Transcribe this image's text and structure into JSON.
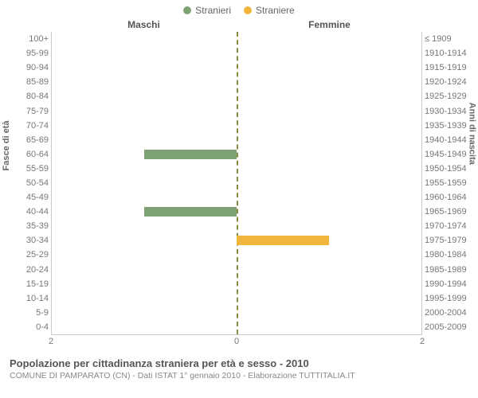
{
  "legend": {
    "items": [
      {
        "label": "Stranieri",
        "color": "#7fa274"
      },
      {
        "label": "Straniere",
        "color": "#f2b63c"
      }
    ]
  },
  "headers": {
    "left": "Maschi",
    "right": "Femmine"
  },
  "chart": {
    "type": "population-pyramid",
    "bar_colors": {
      "male": "#7fa274",
      "female": "#f2b63c"
    },
    "center_line_color": "#8a8a40",
    "background_color": "#ffffff",
    "border_color": "#cccccc",
    "tick_color": "#777777",
    "label_fontsize": 11,
    "x_domain": [
      0,
      2
    ],
    "x_ticks": [
      2,
      0,
      2
    ],
    "ylabel_left": "Fasce di età",
    "ylabel_right": "Anni di nascita",
    "rows": [
      {
        "age": "100+",
        "birth": "≤ 1909",
        "male": 0,
        "female": 0
      },
      {
        "age": "95-99",
        "birth": "1910-1914",
        "male": 0,
        "female": 0
      },
      {
        "age": "90-94",
        "birth": "1915-1919",
        "male": 0,
        "female": 0
      },
      {
        "age": "85-89",
        "birth": "1920-1924",
        "male": 0,
        "female": 0
      },
      {
        "age": "80-84",
        "birth": "1925-1929",
        "male": 0,
        "female": 0
      },
      {
        "age": "75-79",
        "birth": "1930-1934",
        "male": 0,
        "female": 0
      },
      {
        "age": "70-74",
        "birth": "1935-1939",
        "male": 0,
        "female": 0
      },
      {
        "age": "65-69",
        "birth": "1940-1944",
        "male": 0,
        "female": 0
      },
      {
        "age": "60-64",
        "birth": "1945-1949",
        "male": 1,
        "female": 0
      },
      {
        "age": "55-59",
        "birth": "1950-1954",
        "male": 0,
        "female": 0
      },
      {
        "age": "50-54",
        "birth": "1955-1959",
        "male": 0,
        "female": 0
      },
      {
        "age": "45-49",
        "birth": "1960-1964",
        "male": 0,
        "female": 0
      },
      {
        "age": "40-44",
        "birth": "1965-1969",
        "male": 1,
        "female": 0
      },
      {
        "age": "35-39",
        "birth": "1970-1974",
        "male": 0,
        "female": 0
      },
      {
        "age": "30-34",
        "birth": "1975-1979",
        "male": 0,
        "female": 1
      },
      {
        "age": "25-29",
        "birth": "1980-1984",
        "male": 0,
        "female": 0
      },
      {
        "age": "20-24",
        "birth": "1985-1989",
        "male": 0,
        "female": 0
      },
      {
        "age": "15-19",
        "birth": "1990-1994",
        "male": 0,
        "female": 0
      },
      {
        "age": "10-14",
        "birth": "1995-1999",
        "male": 0,
        "female": 0
      },
      {
        "age": "5-9",
        "birth": "2000-2004",
        "male": 0,
        "female": 0
      },
      {
        "age": "0-4",
        "birth": "2005-2009",
        "male": 0,
        "female": 0
      }
    ]
  },
  "footer": {
    "title": "Popolazione per cittadinanza straniera per età e sesso - 2010",
    "subtitle": "COMUNE DI PAMPARATO (CN) - Dati ISTAT 1° gennaio 2010 - Elaborazione TUTTITALIA.IT"
  }
}
